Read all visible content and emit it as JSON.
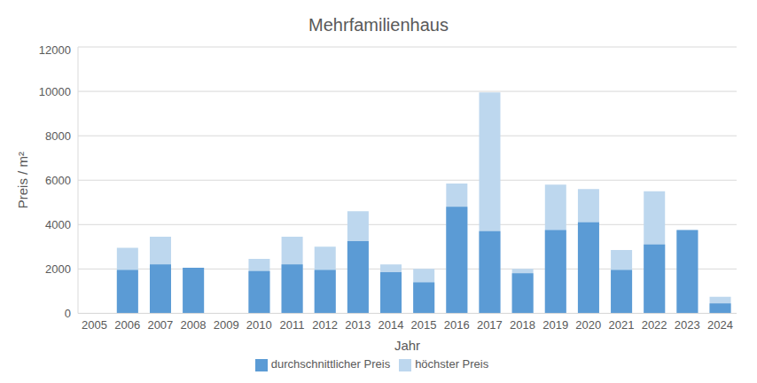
{
  "chart_data": {
    "type": "bar",
    "title": "Mehrfamilienhaus",
    "x_label": "Jahr",
    "y_label": "Preis / m²",
    "categories": [
      "2005",
      "2006",
      "2007",
      "2008",
      "2009",
      "2010",
      "2011",
      "2012",
      "2013",
      "2014",
      "2015",
      "2016",
      "2017",
      "2018",
      "2019",
      "2020",
      "2021",
      "2022",
      "2023",
      "2024"
    ],
    "series": [
      {
        "name": "höchster Preis",
        "color": "#bdd7ee",
        "values": [
          null,
          2950,
          3450,
          2050,
          null,
          2450,
          3450,
          3000,
          4600,
          2200,
          2000,
          5850,
          9950,
          2000,
          5800,
          5600,
          2850,
          5500,
          3750,
          750
        ]
      },
      {
        "name": "durchschnittlicher Preis",
        "color": "#5b9bd5",
        "values": [
          null,
          1950,
          2200,
          2050,
          null,
          1900,
          2200,
          1950,
          3250,
          1850,
          1400,
          4800,
          3700,
          1800,
          3750,
          4100,
          1950,
          3100,
          3750,
          450
        ]
      }
    ],
    "ylim": [
      0,
      12000
    ],
    "yticks": [
      0,
      2000,
      4000,
      6000,
      8000,
      10000,
      12000
    ],
    "grid": true,
    "stacked": false,
    "legend": "bottom"
  }
}
